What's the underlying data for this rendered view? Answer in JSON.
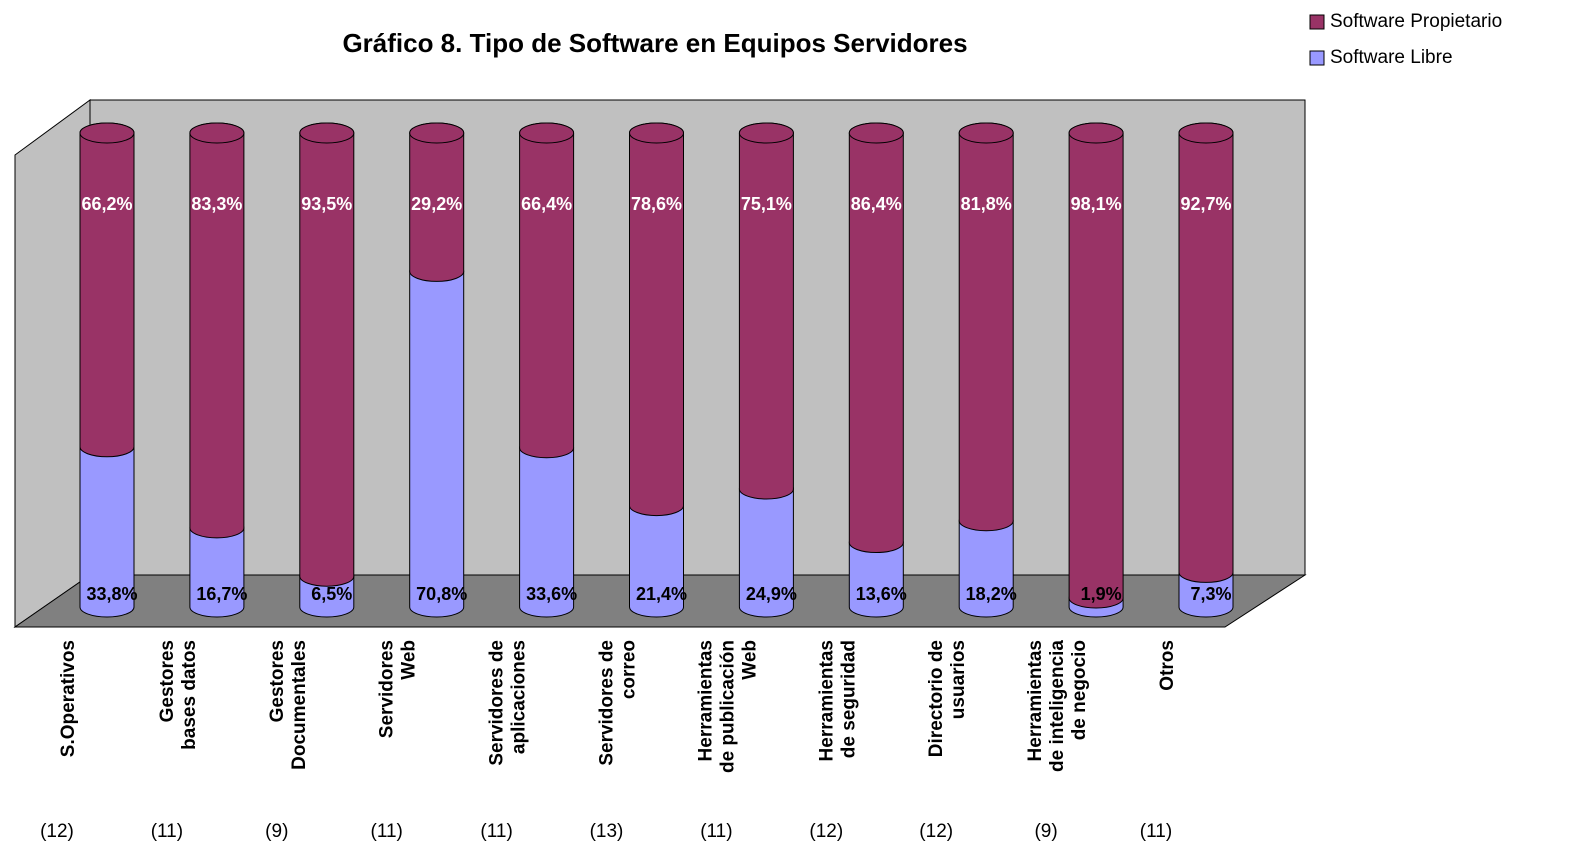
{
  "chart_data": {
    "type": "bar3d_stacked",
    "title": "Gráfico 8. Tipo de Software en Equipos Servidores",
    "categories": [
      "S.Operativos",
      "Gestores\nbases datos",
      "Gestores\nDocumentales",
      "Servidores\nWeb",
      "Servidores de\naplicaciones",
      "Servidores de\ncorreo",
      "Herramientas\nde publicación\nWeb",
      "Herramientas\nde seguridad",
      "Directorio de\nusuarios",
      "Herramientas\nde inteligencia\nde negocio",
      "Otros"
    ],
    "counts": [
      "(12)",
      "(11)",
      "(9)",
      "(11)",
      "(11)",
      "(13)",
      "(11)",
      "(12)",
      "(12)",
      "(9)",
      "(11)"
    ],
    "series": [
      {
        "name": "Software Propietario",
        "color": "#993366",
        "values": [
          66.2,
          83.3,
          93.5,
          29.2,
          66.4,
          78.6,
          75.1,
          86.4,
          81.8,
          98.1,
          92.7
        ],
        "value_labels": [
          "66,2%",
          "83,3%",
          "93,5%",
          "29,2%",
          "66,4%",
          "78,6%",
          "75,1%",
          "86,4%",
          "81,8%",
          "98,1%",
          "92,7%"
        ]
      },
      {
        "name": "Software Libre",
        "color": "#9999ff",
        "values": [
          33.8,
          16.7,
          6.5,
          70.8,
          33.6,
          21.4,
          24.9,
          13.6,
          18.2,
          1.9,
          7.3
        ],
        "value_labels": [
          "33,8%",
          "16,7%",
          "6,5%",
          "70,8%",
          "33,6%",
          "21,4%",
          "24,9%",
          "13,6%",
          "18,2%",
          "1,9%",
          "7,3%"
        ]
      }
    ],
    "ylim": [
      0,
      100
    ],
    "legend": "top-right"
  }
}
